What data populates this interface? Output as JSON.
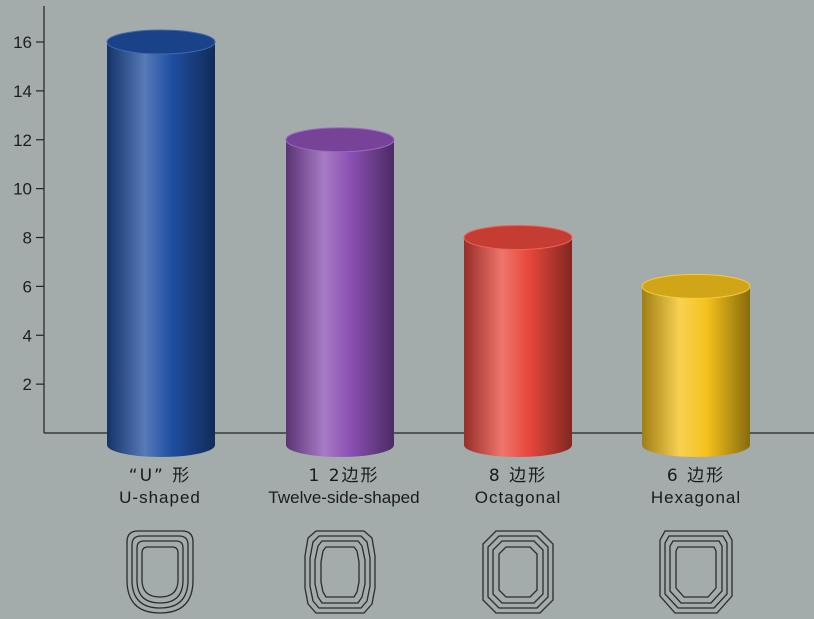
{
  "chart_data": {
    "type": "bar",
    "categories": [
      "U-shaped",
      "Twelve-side-shaped",
      "Octagonal",
      "Hexagonal"
    ],
    "categories_zh": [
      "“U” 形",
      "1 2边形",
      "8 边形",
      "6 边形"
    ],
    "values": [
      16,
      12,
      8,
      6
    ],
    "title": "",
    "xlabel": "",
    "ylabel": "",
    "ylim": [
      0,
      16
    ],
    "yticks": [
      2,
      4,
      6,
      8,
      10,
      12,
      14,
      16
    ],
    "grid": false,
    "legend": "none",
    "colors": [
      "#1f4ea0",
      "#8b4fb3",
      "#e8473c",
      "#f5c21b"
    ],
    "icons": [
      "u-shape-outline-icon",
      "twelve-side-outline-icon",
      "octagon-outline-icon",
      "hexagon-outline-icon"
    ]
  }
}
